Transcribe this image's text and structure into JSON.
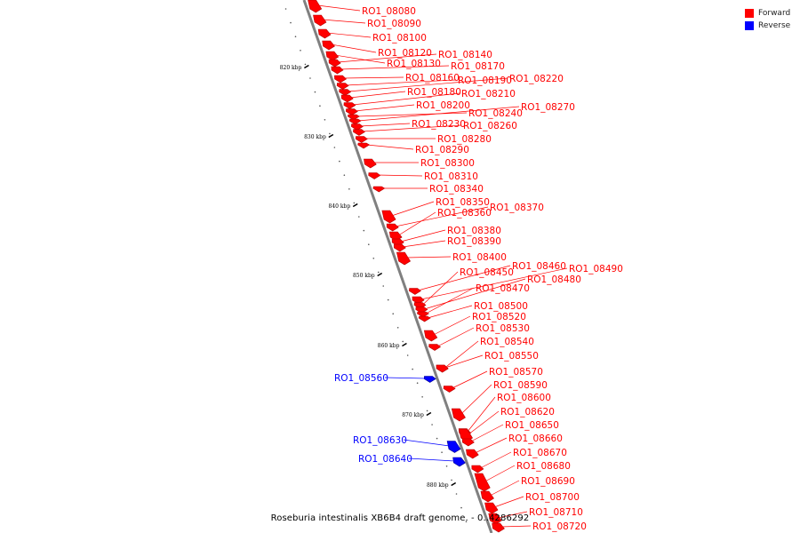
{
  "legend": {
    "forward_label": "Forward",
    "reverse_label": "Reverse",
    "forward_color": "#ff0000",
    "reverse_color": "#0000ff"
  },
  "caption": "Roseburia intestinalis XB6B4 draft genome. - 0..4286292",
  "backbone_color": "#808080",
  "ticks": [
    {
      "kbp": 820,
      "label": "820 kbp"
    },
    {
      "kbp": 830,
      "label": "830 kbp"
    },
    {
      "kbp": 840,
      "label": "840 kbp"
    },
    {
      "kbp": 850,
      "label": "850 kbp"
    },
    {
      "kbp": 860,
      "label": "860 kbp"
    },
    {
      "kbp": 870,
      "label": "870 kbp"
    },
    {
      "kbp": 880,
      "label": "880 kbp"
    }
  ],
  "genes": [
    {
      "id": "RO1_08080",
      "strand": "forward"
    },
    {
      "id": "RO1_08090",
      "strand": "forward"
    },
    {
      "id": "RO1_08100",
      "strand": "forward"
    },
    {
      "id": "RO1_08120",
      "strand": "forward"
    },
    {
      "id": "RO1_08130",
      "strand": "forward"
    },
    {
      "id": "RO1_08140",
      "strand": "forward"
    },
    {
      "id": "RO1_08170",
      "strand": "forward"
    },
    {
      "id": "RO1_08160",
      "strand": "forward"
    },
    {
      "id": "RO1_08190",
      "strand": "forward"
    },
    {
      "id": "RO1_08220",
      "strand": "forward"
    },
    {
      "id": "RO1_08180",
      "strand": "forward"
    },
    {
      "id": "RO1_08210",
      "strand": "forward"
    },
    {
      "id": "RO1_08200",
      "strand": "forward"
    },
    {
      "id": "RO1_08240",
      "strand": "forward"
    },
    {
      "id": "RO1_08270",
      "strand": "forward"
    },
    {
      "id": "RO1_08230",
      "strand": "forward"
    },
    {
      "id": "RO1_08260",
      "strand": "forward"
    },
    {
      "id": "RO1_08280",
      "strand": "forward"
    },
    {
      "id": "RO1_08290",
      "strand": "forward"
    },
    {
      "id": "RO1_08300",
      "strand": "forward"
    },
    {
      "id": "RO1_08310",
      "strand": "forward"
    },
    {
      "id": "RO1_08340",
      "strand": "forward"
    },
    {
      "id": "RO1_08350",
      "strand": "forward"
    },
    {
      "id": "RO1_08370",
      "strand": "forward"
    },
    {
      "id": "RO1_08360",
      "strand": "forward"
    },
    {
      "id": "RO1_08380",
      "strand": "forward"
    },
    {
      "id": "RO1_08390",
      "strand": "forward"
    },
    {
      "id": "RO1_08400",
      "strand": "forward"
    },
    {
      "id": "RO1_08460",
      "strand": "forward"
    },
    {
      "id": "RO1_08490",
      "strand": "forward"
    },
    {
      "id": "RO1_08450",
      "strand": "forward"
    },
    {
      "id": "RO1_08480",
      "strand": "forward"
    },
    {
      "id": "RO1_08470",
      "strand": "forward"
    },
    {
      "id": "RO1_08500",
      "strand": "forward"
    },
    {
      "id": "RO1_08520",
      "strand": "forward"
    },
    {
      "id": "RO1_08530",
      "strand": "forward"
    },
    {
      "id": "RO1_08540",
      "strand": "forward"
    },
    {
      "id": "RO1_08550",
      "strand": "forward"
    },
    {
      "id": "RO1_08560",
      "strand": "reverse"
    },
    {
      "id": "RO1_08570",
      "strand": "forward"
    },
    {
      "id": "RO1_08590",
      "strand": "forward"
    },
    {
      "id": "RO1_08600",
      "strand": "forward"
    },
    {
      "id": "RO1_08620",
      "strand": "forward"
    },
    {
      "id": "RO1_08650",
      "strand": "forward"
    },
    {
      "id": "RO1_08630",
      "strand": "reverse"
    },
    {
      "id": "RO1_08660",
      "strand": "forward"
    },
    {
      "id": "RO1_08640",
      "strand": "reverse"
    },
    {
      "id": "RO1_08670",
      "strand": "forward"
    },
    {
      "id": "RO1_08680",
      "strand": "forward"
    },
    {
      "id": "RO1_08690",
      "strand": "forward"
    },
    {
      "id": "RO1_08700",
      "strand": "forward"
    },
    {
      "id": "RO1_08710",
      "strand": "forward"
    },
    {
      "id": "RO1_08720",
      "strand": "forward"
    }
  ]
}
